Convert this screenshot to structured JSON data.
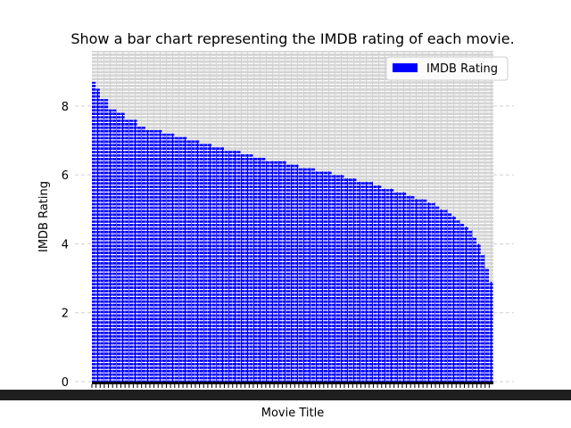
{
  "chart_data": {
    "type": "bar",
    "title": "Show a bar chart representing the IMDB rating of each movie.",
    "xlabel": "Movie Title",
    "ylabel": "IMDB Rating",
    "ylim": [
      0,
      9.6
    ],
    "yticks": [
      "0",
      "2",
      "4",
      "6",
      "8"
    ],
    "grid": true,
    "legend_position": "top-right",
    "sorted": "descending",
    "series": [
      {
        "name": "IMDB Rating",
        "color": "#0000ff",
        "values": [
          8.7,
          8.5,
          8.2,
          8.2,
          7.9,
          7.9,
          7.8,
          7.8,
          7.6,
          7.6,
          7.6,
          7.4,
          7.4,
          7.3,
          7.3,
          7.3,
          7.3,
          7.2,
          7.2,
          7.2,
          7.1,
          7.1,
          7.1,
          7.0,
          7.0,
          7.0,
          6.9,
          6.9,
          6.9,
          6.8,
          6.8,
          6.8,
          6.7,
          6.7,
          6.7,
          6.7,
          6.6,
          6.6,
          6.6,
          6.5,
          6.5,
          6.5,
          6.4,
          6.4,
          6.4,
          6.4,
          6.4,
          6.3,
          6.3,
          6.3,
          6.2,
          6.2,
          6.2,
          6.2,
          6.1,
          6.1,
          6.1,
          6.1,
          6.0,
          6.0,
          6.0,
          5.9,
          5.9,
          5.9,
          5.8,
          5.8,
          5.8,
          5.8,
          5.7,
          5.7,
          5.6,
          5.6,
          5.6,
          5.5,
          5.5,
          5.5,
          5.4,
          5.4,
          5.3,
          5.3,
          5.3,
          5.2,
          5.2,
          5.1,
          5.0,
          5.0,
          4.9,
          4.8,
          4.7,
          4.6,
          4.5,
          4.4,
          4.2,
          4.0,
          3.7,
          3.3,
          2.9
        ]
      }
    ]
  }
}
